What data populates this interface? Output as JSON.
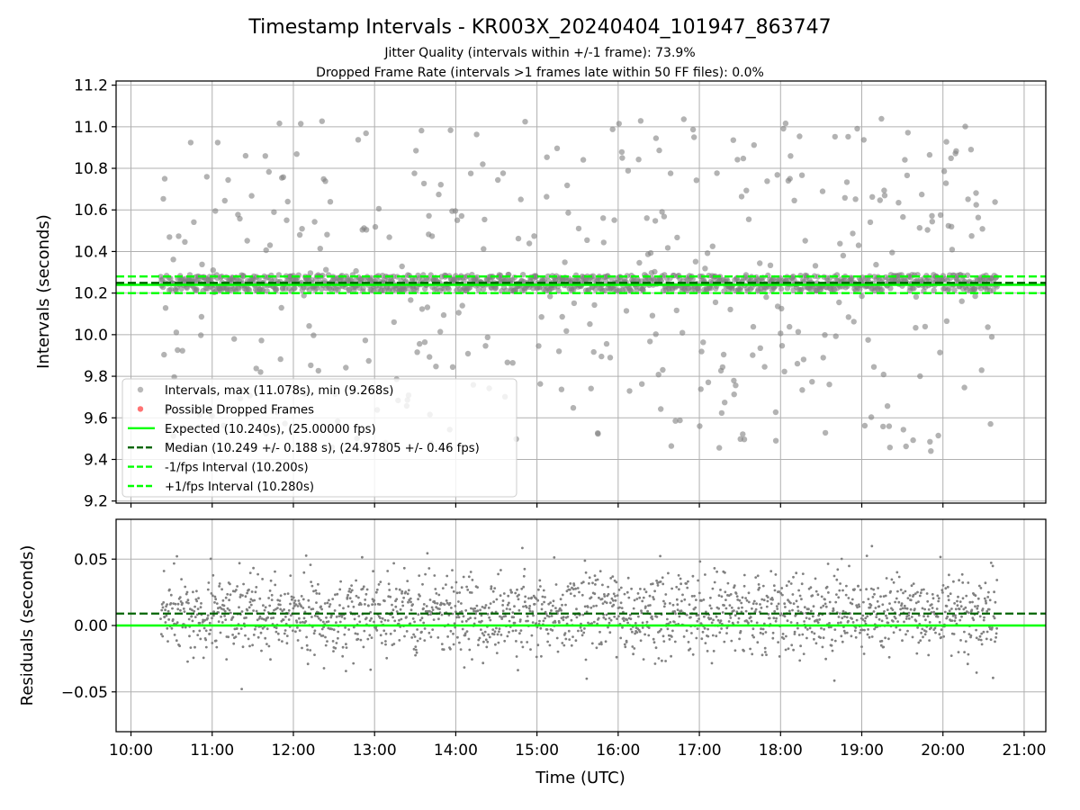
{
  "figure": {
    "title": "Timestamp Intervals - KR003X_20240404_101947_863747",
    "subtitle_line1": "Jitter Quality (intervals within +/-1 frame): 73.9%",
    "subtitle_line2": "Dropped Frame Rate (intervals >1 frames late within 50 FF files): 0.0%",
    "xlabel": "Time (UTC)"
  },
  "colors": {
    "points": "#808080",
    "dropped": "#ff0000",
    "expected": "#00ff00",
    "median": "#006400",
    "bounds": "#00ff00",
    "grid": "#b0b0b0"
  },
  "chart_data": [
    {
      "type": "scatter",
      "panel": "intervals",
      "ylabel": "Intervals (seconds)",
      "xlim": [
        "09:49",
        "21:16"
      ],
      "ylim": [
        9.19,
        11.22
      ],
      "x_ticks": [
        "10:00",
        "11:00",
        "12:00",
        "13:00",
        "14:00",
        "15:00",
        "16:00",
        "17:00",
        "18:00",
        "19:00",
        "20:00",
        "21:00"
      ],
      "y_ticks": [
        "9.2",
        "9.4",
        "9.6",
        "9.8",
        "10.0",
        "10.2",
        "10.4",
        "10.6",
        "10.8",
        "11.0",
        "11.2"
      ],
      "y_tick_values": [
        9.2,
        9.4,
        9.6,
        9.8,
        10.0,
        10.2,
        10.4,
        10.6,
        10.8,
        11.0,
        11.2
      ],
      "grid": true,
      "legend_position": "lower-left",
      "time_range": [
        "10:22",
        "20:40"
      ],
      "interval_stats": {
        "max": 11.078,
        "min": 9.268,
        "core_band_fraction": 0.739,
        "core_half_width": 0.04
      },
      "reference_lines": {
        "expected": 10.24,
        "median": 10.249,
        "minus_one_frame": 10.2,
        "plus_one_frame": 10.28
      },
      "legend": [
        {
          "label": "Intervals, max (11.078s), min (9.268s)",
          "kind": "marker",
          "color": "#808080"
        },
        {
          "label": "Possible Dropped Frames",
          "kind": "marker",
          "color": "#ff0000"
        },
        {
          "label": "Expected (10.240s), (25.00000 fps)",
          "kind": "line",
          "color": "#00ff00"
        },
        {
          "label": "Median (10.249 +/- 0.188 s), (24.97805 +/- 0.46 fps)",
          "kind": "dashed",
          "color": "#006400"
        },
        {
          "label": "-1/fps Interval (10.200s)",
          "kind": "dashed",
          "color": "#00ff00"
        },
        {
          "label": "+1/fps Interval (10.280s)",
          "kind": "dashed",
          "color": "#00ff00"
        }
      ]
    },
    {
      "type": "scatter",
      "panel": "residuals",
      "ylabel": "Residuals (seconds)",
      "xlim": [
        "09:49",
        "21:16"
      ],
      "ylim": [
        -0.08,
        0.08
      ],
      "x_ticks": [
        "10:00",
        "11:00",
        "12:00",
        "13:00",
        "14:00",
        "15:00",
        "16:00",
        "17:00",
        "18:00",
        "19:00",
        "20:00",
        "21:00"
      ],
      "y_ticks": [
        "−0.05",
        "0.00",
        "0.05"
      ],
      "y_tick_values": [
        -0.05,
        0.0,
        0.05
      ],
      "grid": true,
      "reference_lines": {
        "zero": 0.0,
        "median_offset": 0.009
      },
      "residual_spread": 0.025
    }
  ]
}
